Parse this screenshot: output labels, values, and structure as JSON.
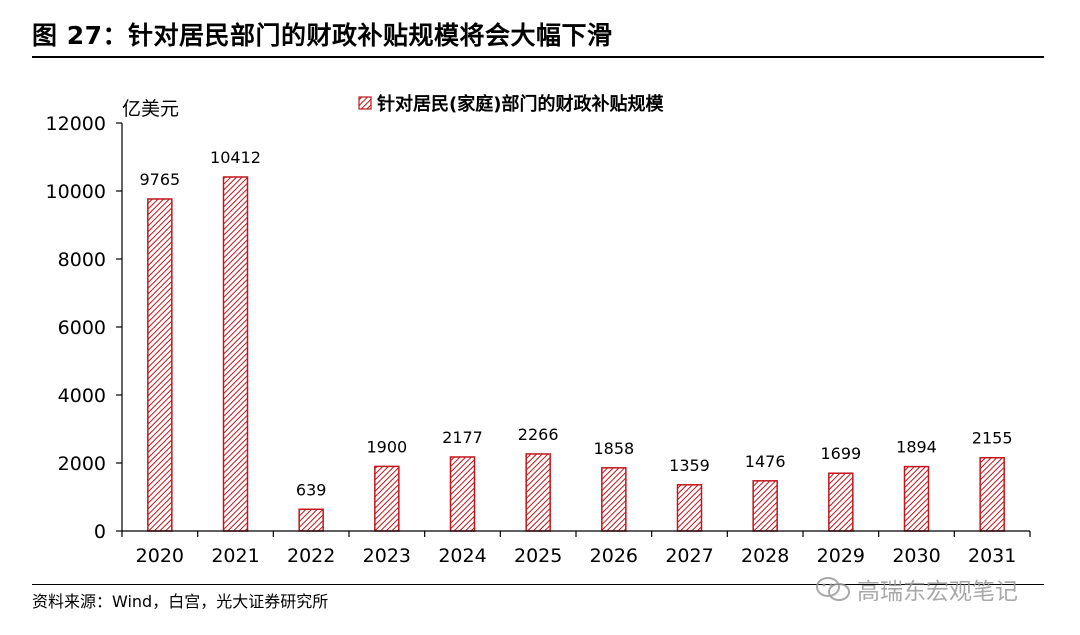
{
  "title": "图 27：针对居民部门的财政补贴规模将会大幅下滑",
  "source": "资料来源：Wind，白宫，光大证券研究所",
  "watermark": "高瑞东宏观笔记",
  "colors": {
    "bar_stroke": "#c0161c",
    "bar_bg": "#ffffff",
    "text": "#000000",
    "axis": "#000000"
  },
  "chart_data": {
    "type": "bar",
    "title": "针对居民部门的财政补贴规模将会大幅下滑",
    "unit_label": "亿美元",
    "legend": "针对居民(家庭)部门的财政补贴规模",
    "legend_position": "top-center",
    "categories": [
      "2020",
      "2021",
      "2022",
      "2023",
      "2024",
      "2025",
      "2026",
      "2027",
      "2028",
      "2029",
      "2030",
      "2031"
    ],
    "values": [
      9765,
      10412,
      639,
      1900,
      2177,
      2266,
      1858,
      1359,
      1476,
      1699,
      1894,
      2155
    ],
    "data_labels": [
      "9765",
      "10412",
      "639",
      "1900",
      "2177",
      "2266",
      "1858",
      "1359",
      "1476",
      "1699",
      "1894",
      "2155"
    ],
    "ylim": [
      0,
      12000
    ],
    "yticks": [
      0,
      2000,
      4000,
      6000,
      8000,
      10000,
      12000
    ],
    "ytick_labels": [
      "0",
      "2000",
      "4000",
      "6000",
      "8000",
      "10000",
      "12000"
    ],
    "grid": false,
    "pattern": "diagonal-hatch"
  }
}
